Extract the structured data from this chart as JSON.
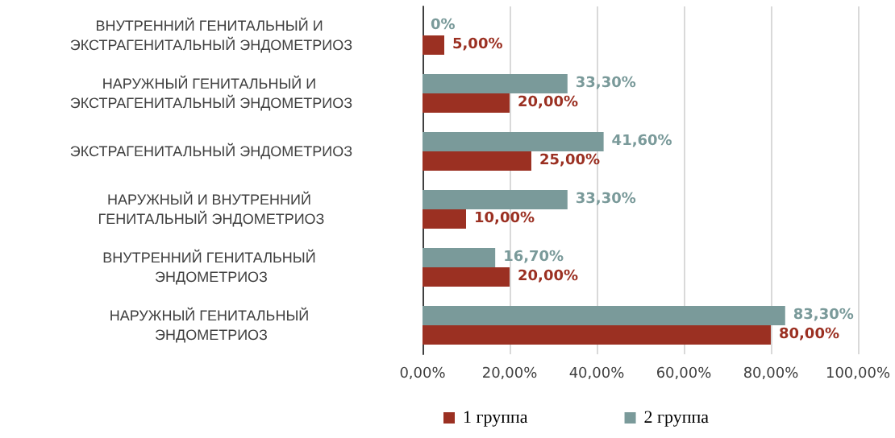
{
  "chart_data": {
    "type": "bar",
    "orientation": "horizontal",
    "categories": [
      "ВНУТРЕННИЙ ГЕНИТАЛЬНЫЙ И ЭКСТРАГЕНИТАЛЬНЫЙ ЭНДОМЕТРИОЗ",
      "НАРУЖНЫЙ ГЕНИТАЛЬНЫЙ И ЭКСТРАГЕНИТАЛЬНЫЙ ЭНДОМЕТРИОЗ",
      "ЭКСТРАГЕНИТАЛЬНЫЙ ЭНДОМЕТРИОЗ",
      "НАРУЖНЫЙ И ВНУТРЕННИЙ ГЕНИТАЛЬНЫЙ ЭНДОМЕТРИОЗ",
      "ВНУТРЕННИЙ ГЕНИТАЛЬНЫЙ ЭНДОМЕТРИОЗ",
      "НАРУЖНЫЙ ГЕНИТАЛЬНЫЙ ЭНДОМЕТРИОЗ"
    ],
    "series": [
      {
        "name": "1 группа",
        "color": "#9b3022",
        "values": [
          5,
          20,
          25,
          10,
          20,
          80
        ],
        "value_labels": [
          "5,00%",
          "20,00%",
          "25,00%",
          "10,00%",
          "20,00%",
          "80,00%"
        ]
      },
      {
        "name": "2 группа",
        "color": "#7a9a9a",
        "values": [
          0,
          33.3,
          41.6,
          33.3,
          16.7,
          83.3
        ],
        "value_labels": [
          "0%",
          "33,30%",
          "41,60%",
          "33,30%",
          "16,70%",
          "83,30%"
        ]
      }
    ],
    "xlim": [
      0,
      100
    ],
    "xticks": [
      {
        "value": 0,
        "label": "0,00%"
      },
      {
        "value": 20,
        "label": "20,00%"
      },
      {
        "value": 40,
        "label": "40,00%"
      },
      {
        "value": 60,
        "label": "60,00%"
      },
      {
        "value": 80,
        "label": "80,00%"
      },
      {
        "value": 100,
        "label": "100,00%"
      }
    ],
    "grid": "x",
    "legend": "bottom"
  }
}
